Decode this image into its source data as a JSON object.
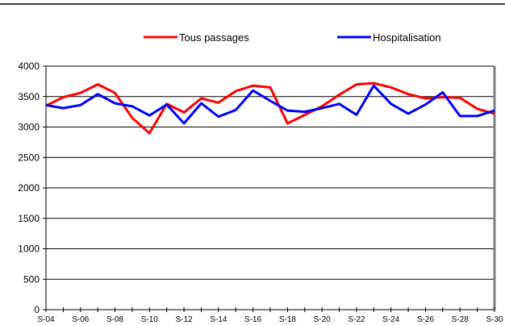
{
  "chart_data": {
    "type": "line",
    "x": [
      "S-04",
      "S-05",
      "S-06",
      "S-07",
      "S-08",
      "S-09",
      "S-10",
      "S-11",
      "S-12",
      "S-13",
      "S-14",
      "S-15",
      "S-16",
      "S-17",
      "S-18",
      "S-19",
      "S-20",
      "S-21",
      "S-22",
      "S-23",
      "S-24",
      "S-25",
      "S-26",
      "S-27",
      "S-28",
      "S-29",
      "S-30"
    ],
    "x_tick_labels": [
      "S-04",
      "S-06",
      "S-08",
      "S-10",
      "S-12",
      "S-14",
      "S-16",
      "S-18",
      "S-20",
      "S-22",
      "S-24",
      "S-26",
      "S-28",
      "S-30"
    ],
    "ylim": [
      0,
      4000
    ],
    "y_ticks": [
      "0",
      "500",
      "1000",
      "1500",
      "2000",
      "2500",
      "3000",
      "3500",
      "4000"
    ],
    "grid": true,
    "legend_position": "top",
    "series": [
      {
        "name": "Tous passages",
        "color": "#ff0000",
        "values": [
          3350,
          3490,
          3560,
          3700,
          3560,
          3150,
          2900,
          3380,
          3240,
          3470,
          3400,
          3590,
          3680,
          3650,
          3060,
          3200,
          3340,
          3530,
          3700,
          3720,
          3650,
          3540,
          3470,
          3490,
          3480,
          3300,
          3220
        ]
      },
      {
        "name": "Hospitalisation",
        "color": "#0000ff",
        "values": [
          3360,
          3310,
          3360,
          3540,
          3390,
          3340,
          3190,
          3370,
          3060,
          3390,
          3170,
          3280,
          3600,
          3430,
          3270,
          3250,
          3310,
          3380,
          3200,
          3680,
          3380,
          3220,
          3370,
          3570,
          3180,
          3180,
          3270
        ]
      }
    ]
  }
}
